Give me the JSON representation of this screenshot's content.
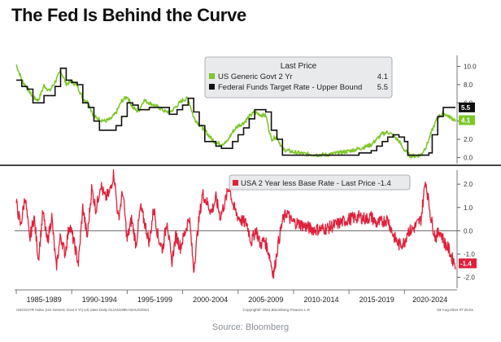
{
  "title": "The Fed Is Behind the Curve",
  "source": "Source: Bloomberg",
  "footer_left": "USGG2YR Index (US Generic Govt 2 Yr) US rates  Daily 01JAN1985-02AUG2024",
  "footer_mid": "Copyright© 2024 Bloomberg Finance L.P.",
  "footer_right": "03-Aug-2024 07:25:51",
  "colors": {
    "govt2y": "#7ec72b",
    "fedfunds": "#111111",
    "spread": "#e0203a",
    "divider": "#444444",
    "zero_line": "#666666",
    "grid": "#bbbbbb"
  },
  "chart_data": [
    {
      "type": "line",
      "legend": {
        "title": "Last Price",
        "placement": "top-right",
        "entries": [
          {
            "name": "US Generic Govt 2 Yr",
            "value": "4.1"
          },
          {
            "name": "Federal Funds Target Rate - Upper Bound",
            "value": "5.5"
          }
        ]
      },
      "yticks": [
        "0.0",
        "2.0",
        "4.0",
        "6.0",
        "8.0",
        "10.0"
      ],
      "ylim": [
        -0.5,
        10.5
      ],
      "last_value_tags": [
        "5.5",
        "4.1"
      ],
      "series": [
        {
          "name": "US Generic Govt 2 Yr",
          "x": [
            1985.0,
            1985.5,
            1986.0,
            1986.5,
            1987.0,
            1987.5,
            1988.0,
            1988.5,
            1989.0,
            1989.5,
            1990.0,
            1990.5,
            1991.0,
            1991.5,
            1992.0,
            1992.5,
            1993.0,
            1993.5,
            1994.0,
            1994.5,
            1995.0,
            1995.5,
            1996.0,
            1996.5,
            1997.0,
            1997.5,
            1998.0,
            1998.5,
            1999.0,
            1999.5,
            2000.0,
            2000.5,
            2001.0,
            2001.5,
            2002.0,
            2002.5,
            2003.0,
            2003.5,
            2004.0,
            2004.5,
            2005.0,
            2005.5,
            2006.0,
            2006.5,
            2007.0,
            2007.5,
            2008.0,
            2008.5,
            2009.0,
            2010.0,
            2011.0,
            2012.0,
            2013.0,
            2014.0,
            2015.0,
            2016.0,
            2017.0,
            2018.0,
            2018.5,
            2019.0,
            2019.5,
            2020.0,
            2020.5,
            2021.0,
            2021.5,
            2022.0,
            2022.5,
            2023.0,
            2023.5,
            2024.0,
            2024.6
          ],
          "values": [
            10.2,
            8.5,
            7.6,
            6.6,
            6.3,
            7.9,
            7.3,
            8.3,
            9.5,
            8.1,
            8.3,
            7.9,
            6.5,
            6.0,
            4.5,
            4.2,
            4.0,
            4.2,
            4.9,
            6.2,
            6.7,
            5.5,
            5.0,
            6.3,
            6.0,
            5.7,
            5.4,
            5.0,
            5.1,
            5.7,
            6.3,
            6.5,
            4.4,
            3.6,
            3.0,
            2.2,
            1.6,
            1.5,
            1.7,
            2.8,
            3.5,
            3.8,
            4.5,
            5.0,
            4.7,
            4.6,
            2.0,
            2.3,
            0.9,
            0.6,
            0.4,
            0.3,
            0.3,
            0.5,
            0.7,
            1.0,
            1.4,
            2.6,
            2.8,
            2.4,
            1.8,
            0.8,
            0.2,
            0.15,
            0.3,
            1.3,
            3.0,
            4.4,
            4.9,
            4.5,
            4.1
          ]
        },
        {
          "name": "Federal Funds Target Rate - Upper Bound",
          "x": [
            1985.0,
            1985.5,
            1986.0,
            1986.5,
            1987.0,
            1987.5,
            1988.0,
            1988.5,
            1989.0,
            1989.5,
            1990.0,
            1990.5,
            1991.0,
            1991.5,
            1992.0,
            1992.5,
            1993.0,
            1993.5,
            1994.0,
            1994.5,
            1995.0,
            1995.5,
            1996.0,
            1997.0,
            1998.0,
            1998.8,
            1999.0,
            1999.5,
            2000.0,
            2000.5,
            2001.0,
            2001.5,
            2002.0,
            2002.5,
            2003.0,
            2003.5,
            2004.0,
            2004.5,
            2005.0,
            2005.5,
            2006.0,
            2006.5,
            2007.0,
            2007.5,
            2008.0,
            2008.5,
            2009.0,
            2012.0,
            2015.9,
            2016.5,
            2017.0,
            2017.5,
            2018.0,
            2018.5,
            2019.0,
            2019.5,
            2020.0,
            2020.3,
            2021.0,
            2022.0,
            2022.2,
            2022.5,
            2023.0,
            2023.5,
            2024.0,
            2024.6
          ],
          "values": [
            8.5,
            7.8,
            7.5,
            6.0,
            6.0,
            6.8,
            6.8,
            7.8,
            9.8,
            8.5,
            8.25,
            8.0,
            6.0,
            5.5,
            4.0,
            3.0,
            3.0,
            3.0,
            3.5,
            4.5,
            6.0,
            5.75,
            5.25,
            5.5,
            5.5,
            4.75,
            4.75,
            5.25,
            5.75,
            6.5,
            5.0,
            3.5,
            1.75,
            1.75,
            1.25,
            1.0,
            1.0,
            1.75,
            2.5,
            3.25,
            4.25,
            5.25,
            5.25,
            5.0,
            3.0,
            2.0,
            0.25,
            0.25,
            0.5,
            0.5,
            0.75,
            1.25,
            1.75,
            2.25,
            2.5,
            2.25,
            1.75,
            0.25,
            0.25,
            0.25,
            0.5,
            2.5,
            4.5,
            5.5,
            5.5,
            5.5
          ]
        }
      ]
    },
    {
      "type": "line",
      "legend": {
        "placement": "top-right",
        "entries": [
          {
            "name": "USA 2 Year less Base Rate - Last Price",
            "value": "-1.4"
          }
        ]
      },
      "yticks": [
        "2.0",
        "1.0",
        "0.0",
        "-1.0",
        "-2.0"
      ],
      "ylim": [
        -2.4,
        2.6
      ],
      "last_value_tags": [
        "-1.4"
      ],
      "series": [
        {
          "name": "USA 2 Year less Base Rate",
          "x": [
            1985.0,
            1985.4,
            1985.8,
            1986.2,
            1986.6,
            1987.0,
            1987.4,
            1987.8,
            1988.2,
            1988.6,
            1989.0,
            1989.4,
            1989.8,
            1990.2,
            1990.6,
            1991.0,
            1991.4,
            1991.8,
            1992.2,
            1992.6,
            1993.0,
            1993.4,
            1993.8,
            1994.2,
            1994.6,
            1995.0,
            1995.4,
            1995.8,
            1996.2,
            1996.6,
            1997.0,
            1997.4,
            1997.8,
            1998.2,
            1998.6,
            1999.0,
            1999.4,
            1999.8,
            2000.2,
            2000.6,
            2001.0,
            2001.4,
            2001.8,
            2002.2,
            2002.6,
            2003.0,
            2003.4,
            2003.8,
            2004.2,
            2004.6,
            2005.0,
            2005.4,
            2005.8,
            2006.2,
            2006.6,
            2007.0,
            2007.4,
            2007.8,
            2008.2,
            2008.6,
            2009.0,
            2009.4,
            2009.8,
            2010.5,
            2011.0,
            2011.5,
            2012.0,
            2013.0,
            2014.0,
            2015.0,
            2016.0,
            2016.5,
            2017.0,
            2017.5,
            2018.0,
            2018.5,
            2019.0,
            2019.5,
            2020.0,
            2020.3,
            2020.6,
            2021.0,
            2021.5,
            2021.9,
            2022.2,
            2022.4,
            2022.8,
            2023.2,
            2023.6,
            2024.0,
            2024.3,
            2024.6
          ],
          "values": [
            1.2,
            0.2,
            1.5,
            -0.4,
            0.6,
            -1.2,
            0.8,
            -0.5,
            0.6,
            -1.6,
            -0.2,
            -1.0,
            0.3,
            -0.5,
            -1.4,
            1.0,
            -0.3,
            1.8,
            0.9,
            2.0,
            1.4,
            1.6,
            2.5,
            0.5,
            1.7,
            -0.4,
            0.5,
            -0.6,
            1.0,
            0.3,
            -0.5,
            1.0,
            -0.3,
            -0.8,
            0.5,
            -1.4,
            -0.2,
            -0.7,
            -0.1,
            0.6,
            -1.7,
            0.2,
            1.6,
            1.2,
            0.8,
            1.4,
            0.6,
            1.2,
            1.9,
            1.0,
            0.6,
            0.4,
            0.3,
            -0.5,
            0.1,
            -0.6,
            -0.4,
            -1.0,
            -1.9,
            -0.6,
            0.4,
            0.8,
            0.4,
            0.3,
            0.2,
            0.1,
            0.05,
            0.1,
            0.3,
            0.5,
            0.6,
            0.5,
            0.6,
            0.3,
            0.4,
            0.5,
            -0.2,
            -0.6,
            -0.5,
            0.0,
            0.0,
            0.2,
            0.5,
            2.2,
            1.2,
            0.5,
            -0.3,
            0.0,
            -0.5,
            -0.8,
            -1.2,
            -1.4
          ]
        }
      ]
    }
  ],
  "x_axis": {
    "tick_labels": [
      "1985-1989",
      "1990-1994",
      "1995-1999",
      "2000-2004",
      "2005-2009",
      "2010-2014",
      "2015-2019",
      "2020-2024"
    ]
  }
}
